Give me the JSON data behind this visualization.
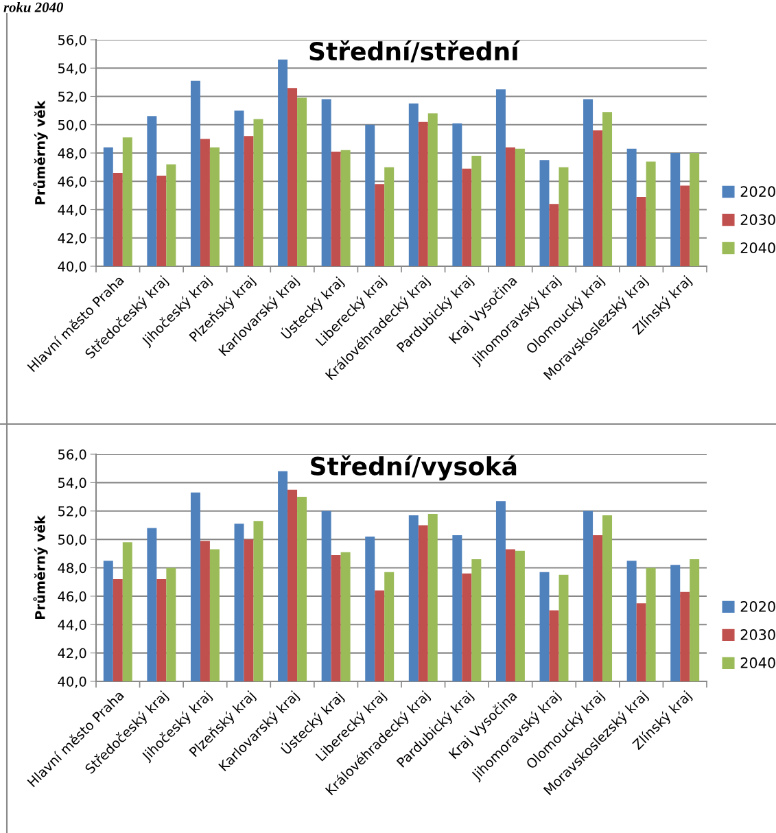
{
  "chart_data": [
    {
      "type": "bar",
      "title": "Střední/střední",
      "ylabel": "Průměrný věk",
      "annotations": [
        "roku 2040"
      ],
      "categories": [
        "Hlavní město Praha",
        "Středočeský kraj",
        "Jihočeský kraj",
        "Plzeňský kraj",
        "Karlovarský kraj",
        "Ústecký kraj",
        "Liberecký kraj",
        "Královéhradecký kraj",
        "Pardubický kraj",
        "Kraj Vysočina",
        "Jihomoravský kraj",
        "Olomoucký kraj",
        "Moravskoslezský kraj",
        "Zlínský kraj"
      ],
      "series": [
        {
          "name": "2020",
          "color": "#4f81bd",
          "values": [
            48.4,
            50.6,
            53.1,
            51.0,
            54.6,
            51.8,
            50.0,
            51.5,
            50.1,
            52.5,
            47.5,
            51.8,
            48.3,
            48.0
          ]
        },
        {
          "name": "2030",
          "color": "#c0504d",
          "values": [
            46.6,
            46.4,
            49.0,
            49.2,
            52.6,
            48.1,
            45.8,
            50.2,
            46.9,
            48.4,
            44.4,
            49.6,
            44.9,
            45.7
          ]
        },
        {
          "name": "2040",
          "color": "#9bbb59",
          "values": [
            49.1,
            47.2,
            48.4,
            50.4,
            51.9,
            48.2,
            47.0,
            50.8,
            47.8,
            48.3,
            47.0,
            50.9,
            47.4,
            48.0
          ]
        }
      ],
      "ylim": [
        40,
        56
      ],
      "yticks": [
        {
          "value": 40,
          "label": "40,0"
        },
        {
          "value": 42,
          "label": "42,0"
        },
        {
          "value": 44,
          "label": "44,0"
        },
        {
          "value": 46,
          "label": "46,0"
        },
        {
          "value": 48,
          "label": "48,0"
        },
        {
          "value": 50,
          "label": "50,0"
        },
        {
          "value": 52,
          "label": "52,0"
        },
        {
          "value": 54,
          "label": "54,0"
        },
        {
          "value": 56,
          "label": "56,0"
        }
      ],
      "grid": "y",
      "legend": "right"
    },
    {
      "type": "bar",
      "title": "Střední/vysoká",
      "ylabel": "Průměrný věk",
      "categories": [
        "Hlavní město Praha",
        "Středočeský kraj",
        "Jihočeský kraj",
        "Plzeňský kraj",
        "Karlovarský kraj",
        "Ústecký kraj",
        "Liberecký kraj",
        "Královéhradecký kraj",
        "Pardubický kraj",
        "Kraj Vysočina",
        "Jihomoravský kraj",
        "Olomoucký kraj",
        "Moravskoslezský kraj",
        "Zlínský kraj"
      ],
      "series": [
        {
          "name": "2020",
          "color": "#4f81bd",
          "values": [
            48.5,
            50.8,
            53.3,
            51.1,
            54.8,
            52.0,
            50.2,
            51.7,
            50.3,
            52.7,
            47.7,
            52.0,
            48.5,
            48.2
          ]
        },
        {
          "name": "2030",
          "color": "#c0504d",
          "values": [
            47.2,
            47.2,
            49.9,
            50.0,
            53.5,
            48.9,
            46.4,
            51.0,
            47.6,
            49.3,
            45.0,
            50.3,
            45.5,
            46.3
          ]
        },
        {
          "name": "2040",
          "color": "#9bbb59",
          "values": [
            49.8,
            48.0,
            49.3,
            51.3,
            53.0,
            49.1,
            47.7,
            51.8,
            48.6,
            49.2,
            47.5,
            51.7,
            48.0,
            48.6
          ]
        }
      ],
      "ylim": [
        40,
        56
      ],
      "yticks": [
        {
          "value": 40,
          "label": "40,0"
        },
        {
          "value": 42,
          "label": "42,0"
        },
        {
          "value": 44,
          "label": "44,0"
        },
        {
          "value": 46,
          "label": "46,0"
        },
        {
          "value": 48,
          "label": "48,0"
        },
        {
          "value": 50,
          "label": "50,0"
        },
        {
          "value": 52,
          "label": "52,0"
        },
        {
          "value": 54,
          "label": "54,0"
        },
        {
          "value": 56,
          "label": "56,0"
        }
      ],
      "grid": "y",
      "legend": "right"
    }
  ]
}
